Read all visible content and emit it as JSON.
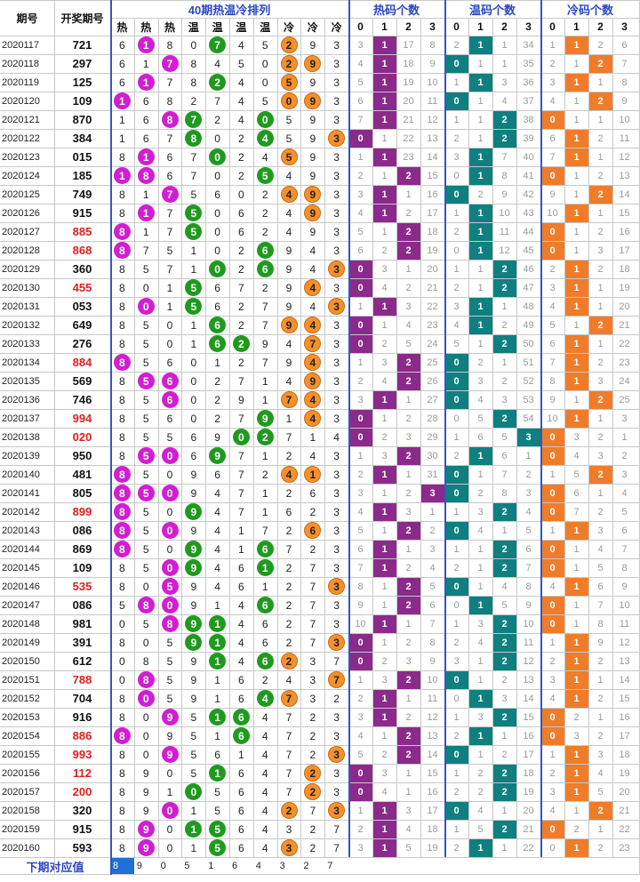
{
  "headers": {
    "period": "期号",
    "number": "开奖期号",
    "ranking": "40期热温冷排列",
    "hot_count": "热码个数",
    "warm_count": "温码个数",
    "cold_count": "冷码个数"
  },
  "ranking_labels": [
    "热",
    "热",
    "热",
    "温",
    "温",
    "温",
    "温",
    "冷",
    "冷",
    "冷"
  ],
  "count_labels": [
    "0",
    "1",
    "2",
    "3"
  ],
  "footer": {
    "label": "下期对应值",
    "values": [
      "8",
      "9",
      "0",
      "5",
      "1",
      "6",
      "4",
      "3",
      "2",
      "7"
    ]
  },
  "colors": {
    "hot_ball": "#d21ed2",
    "warm_ball": "#1f9a1f",
    "cold_ball": "#f5902a",
    "hot_mark": "#8b2a8b",
    "warm_mark": "#0f7f7f",
    "cold_mark": "#f07c2a",
    "highlight_number": "#e02020",
    "header_text": "#2a47c4"
  },
  "chart_data": {
    "type": "table",
    "columns": [
      "期号",
      "开奖期号",
      "40期热温冷排列",
      "热码个数",
      "温码个数",
      "冷码个数"
    ],
    "rows": [
      {
        "p": "2020117",
        "n": "721",
        "r": false,
        "order": "6180745293",
        "hot": [
          3,
          1,
          17,
          8
        ],
        "warm": [
          2,
          1,
          1,
          34
        ],
        "cold": [
          1,
          1,
          2,
          6
        ]
      },
      {
        "p": "2020118",
        "n": "297",
        "r": false,
        "order": "6178450293",
        "hot": [
          4,
          1,
          18,
          9
        ],
        "warm": [
          0,
          1,
          1,
          35
        ],
        "cold": [
          2,
          1,
          2,
          7
        ]
      },
      {
        "p": "2020119",
        "n": "125",
        "r": false,
        "order": "6178240593",
        "hot": [
          5,
          1,
          19,
          10
        ],
        "warm": [
          1,
          1,
          3,
          36
        ],
        "cold": [
          3,
          1,
          1,
          8
        ]
      },
      {
        "p": "2020120",
        "n": "109",
        "r": false,
        "order": "1682745093",
        "hot": [
          6,
          1,
          20,
          11
        ],
        "warm": [
          0,
          1,
          4,
          37
        ],
        "cold": [
          4,
          1,
          2,
          9
        ]
      },
      {
        "p": "2020121",
        "n": "870",
        "r": false,
        "order": "1687240593",
        "hot": [
          7,
          1,
          21,
          12
        ],
        "warm": [
          1,
          1,
          5,
          38
        ],
        "cold": [
          5,
          1,
          1,
          10
        ]
      },
      {
        "p": "2020122",
        "n": "384",
        "r": false,
        "order": "1678024593",
        "hot": [
          0,
          1,
          22,
          13
        ],
        "warm": [
          2,
          1,
          6,
          39
        ],
        "cold": [
          6,
          1,
          2,
          11
        ]
      },
      {
        "p": "2020123",
        "n": "015",
        "r": false,
        "order": "8167024593",
        "hot": [
          1,
          1,
          23,
          14
        ],
        "warm": [
          3,
          1,
          7,
          40
        ],
        "cold": [
          7,
          1,
          1,
          12
        ]
      },
      {
        "p": "2020124",
        "n": "185",
        "r": false,
        "order": "1867025493",
        "hot": [
          2,
          1,
          2,
          15
        ],
        "warm": [
          0,
          1,
          8,
          41
        ],
        "cold": [
          8,
          1,
          2,
          13
        ]
      },
      {
        "p": "2020125",
        "n": "749",
        "r": false,
        "order": "8175602493",
        "hot": [
          3,
          1,
          1,
          16
        ],
        "warm": [
          0,
          2,
          9,
          42
        ],
        "cold": [
          9,
          1,
          2,
          14
        ]
      },
      {
        "p": "2020126",
        "n": "915",
        "r": false,
        "order": "8175062493",
        "hot": [
          4,
          1,
          2,
          17
        ],
        "warm": [
          1,
          1,
          10,
          43
        ],
        "cold": [
          10,
          1,
          1,
          15
        ]
      },
      {
        "p": "2020127",
        "n": "885",
        "r": true,
        "order": "8175062493",
        "hot": [
          5,
          1,
          2,
          18
        ],
        "warm": [
          2,
          1,
          11,
          44
        ],
        "cold": [
          0,
          1,
          2,
          16
        ]
      },
      {
        "p": "2020128",
        "n": "868",
        "r": true,
        "order": "8751026943",
        "hot": [
          6,
          2,
          2,
          19
        ],
        "warm": [
          0,
          1,
          12,
          45
        ],
        "cold": [
          1,
          1,
          3,
          17
        ]
      },
      {
        "p": "2020129",
        "n": "360",
        "r": false,
        "order": "8571026943",
        "hot": [
          0,
          3,
          1,
          20
        ],
        "warm": [
          1,
          1,
          13,
          46
        ],
        "cold": [
          2,
          1,
          2,
          18
        ]
      },
      {
        "p": "2020130",
        "n": "455",
        "r": true,
        "order": "8015672943",
        "hot": [
          0,
          4,
          2,
          21
        ],
        "warm": [
          2,
          1,
          2,
          47
        ],
        "cold": [
          3,
          1,
          1,
          19
        ]
      },
      {
        "p": "2020131",
        "n": "053",
        "r": false,
        "order": "8015627943",
        "hot": [
          1,
          1,
          3,
          22
        ],
        "warm": [
          3,
          1,
          1,
          48
        ],
        "cold": [
          4,
          1,
          1,
          20
        ]
      },
      {
        "p": "2020132",
        "n": "649",
        "r": false,
        "order": "8501627943",
        "hot": [
          0,
          1,
          4,
          23
        ],
        "warm": [
          4,
          1,
          2,
          49
        ],
        "cold": [
          5,
          1,
          2,
          21
        ]
      },
      {
        "p": "2020133",
        "n": "276",
        "r": false,
        "order": "8501629473",
        "hot": [
          0,
          2,
          5,
          24
        ],
        "warm": [
          5,
          1,
          2,
          50
        ],
        "cold": [
          6,
          1,
          1,
          22
        ]
      },
      {
        "p": "2020134",
        "n": "884",
        "r": true,
        "order": "8560127943",
        "hot": [
          1,
          3,
          2,
          25
        ],
        "warm": [
          0,
          2,
          1,
          51
        ],
        "cold": [
          7,
          1,
          2,
          23
        ]
      },
      {
        "p": "2020135",
        "n": "569",
        "r": false,
        "order": "8560271493",
        "hot": [
          2,
          4,
          2,
          26
        ],
        "warm": [
          0,
          3,
          2,
          52
        ],
        "cold": [
          8,
          1,
          3,
          24
        ]
      },
      {
        "p": "2020136",
        "n": "746",
        "r": false,
        "order": "8560291743",
        "hot": [
          3,
          1,
          1,
          27
        ],
        "warm": [
          0,
          4,
          3,
          53
        ],
        "cold": [
          9,
          1,
          2,
          25
        ]
      },
      {
        "p": "2020137",
        "n": "994",
        "r": true,
        "order": "8560279143",
        "hot": [
          0,
          1,
          2,
          28
        ],
        "warm": [
          0,
          5,
          4,
          54
        ],
        "cold": [
          10,
          2,
          1,
          3
        ]
      },
      {
        "p": "2020138",
        "n": "020",
        "r": true,
        "order": "8556902714",
        "hot": [
          0,
          2,
          3,
          29
        ],
        "warm": [
          1,
          6,
          5,
          3
        ],
        "cold": [
          0,
          3,
          2,
          1
        ]
      },
      {
        "p": "2020139",
        "n": "950",
        "r": false,
        "order": "8506971243",
        "hot": [
          1,
          3,
          2,
          30
        ],
        "warm": [
          2,
          1,
          6,
          1
        ],
        "cold": [
          0,
          4,
          3,
          2
        ]
      },
      {
        "p": "2020140",
        "n": "481",
        "r": false,
        "order": "8509672413",
        "hot": [
          2,
          1,
          1,
          31
        ],
        "warm": [
          0,
          1,
          7,
          2
        ],
        "cold": [
          1,
          5,
          2,
          3
        ]
      },
      {
        "p": "2020141",
        "n": "805",
        "r": false,
        "order": "8509471263",
        "hot": [
          3,
          1,
          2,
          3
        ],
        "warm": [
          0,
          2,
          8,
          3
        ],
        "cold": [
          0,
          6,
          1,
          4
        ]
      },
      {
        "p": "2020142",
        "n": "899",
        "r": true,
        "order": "8509471623",
        "hot": [
          4,
          1,
          3,
          1
        ],
        "warm": [
          1,
          3,
          2,
          4
        ],
        "cold": [
          0,
          7,
          2,
          5
        ]
      },
      {
        "p": "2020143",
        "n": "086",
        "r": false,
        "order": "8509417263",
        "hot": [
          5,
          1,
          2,
          2
        ],
        "warm": [
          0,
          4,
          1,
          5
        ],
        "cold": [
          1,
          1,
          3,
          6
        ]
      },
      {
        "p": "2020144",
        "n": "869",
        "r": false,
        "order": "8509416723",
        "hot": [
          6,
          1,
          1,
          3
        ],
        "warm": [
          1,
          1,
          2,
          6
        ],
        "cold": [
          2,
          1,
          4,
          7
        ]
      },
      {
        "p": "2020145",
        "n": "109",
        "r": false,
        "order": "8509461273",
        "hot": [
          7,
          1,
          2,
          4
        ],
        "warm": [
          2,
          1,
          3,
          7
        ],
        "cold": [
          3,
          1,
          5,
          8
        ]
      },
      {
        "p": "2020146",
        "n": "535",
        "r": true,
        "order": "8059461273",
        "hot": [
          8,
          1,
          2,
          5
        ],
        "warm": [
          0,
          1,
          4,
          8
        ],
        "cold": [
          4,
          1,
          6,
          9
        ]
      },
      {
        "p": "2020147",
        "n": "086",
        "r": false,
        "order": "5809146273",
        "hot": [
          9,
          1,
          2,
          6
        ],
        "warm": [
          0,
          2,
          5,
          9
        ],
        "cold": [
          5,
          1,
          7,
          10
        ]
      },
      {
        "p": "2020148",
        "n": "981",
        "r": false,
        "order": "0589146273",
        "hot": [
          10,
          1,
          1,
          7
        ],
        "warm": [
          1,
          3,
          2,
          10
        ],
        "cold": [
          0,
          1,
          8,
          11
        ]
      },
      {
        "p": "2020149",
        "n": "391",
        "r": false,
        "order": "8059146273",
        "hot": [
          1,
          1,
          2,
          8
        ],
        "warm": [
          2,
          4,
          2,
          11
        ],
        "cold": [
          1,
          1,
          9,
          12
        ]
      },
      {
        "p": "2020150",
        "n": "612",
        "r": false,
        "order": "0859146237",
        "hot": [
          0,
          2,
          3,
          9
        ],
        "warm": [
          3,
          1,
          1,
          12
        ],
        "cold": [
          2,
          1,
          2,
          13
        ]
      },
      {
        "p": "2020151",
        "n": "788",
        "r": true,
        "order": "0859162437",
        "hot": [
          1,
          3,
          2,
          10
        ],
        "warm": [
          0,
          1,
          2,
          13
        ],
        "cold": [
          3,
          1,
          1,
          14
        ]
      },
      {
        "p": "2020152",
        "n": "704",
        "r": false,
        "order": "8059164732",
        "hot": [
          2,
          1,
          1,
          11
        ],
        "warm": [
          0,
          2,
          3,
          14
        ],
        "cold": [
          4,
          1,
          2,
          15
        ]
      },
      {
        "p": "2020153",
        "n": "916",
        "r": false,
        "order": "8095164723",
        "hot": [
          3,
          1,
          2,
          12
        ],
        "warm": [
          1,
          3,
          2,
          15
        ],
        "cold": [
          0,
          2,
          1,
          16
        ]
      },
      {
        "p": "2020154",
        "n": "886",
        "r": true,
        "order": "8095164723",
        "hot": [
          4,
          1,
          2,
          13
        ],
        "warm": [
          2,
          1,
          1,
          16
        ],
        "cold": [
          0,
          3,
          2,
          17
        ]
      },
      {
        "p": "2020155",
        "n": "993",
        "r": true,
        "order": "8095614723",
        "hot": [
          5,
          2,
          2,
          14
        ],
        "warm": [
          0,
          1,
          2,
          17
        ],
        "cold": [
          1,
          1,
          3,
          18
        ]
      },
      {
        "p": "2020156",
        "n": "112",
        "r": true,
        "order": "8905164723",
        "hot": [
          0,
          3,
          1,
          15
        ],
        "warm": [
          1,
          2,
          2,
          18
        ],
        "cold": [
          2,
          1,
          4,
          19
        ]
      },
      {
        "p": "2020157",
        "n": "200",
        "r": true,
        "order": "8910564723",
        "hot": [
          0,
          4,
          1,
          16
        ],
        "warm": [
          2,
          2,
          2,
          19
        ],
        "cold": [
          3,
          1,
          5,
          20
        ]
      },
      {
        "p": "2020158",
        "n": "320",
        "r": false,
        "order": "8901564273",
        "hot": [
          1,
          1,
          3,
          17
        ],
        "warm": [
          0,
          4,
          1,
          20
        ],
        "cold": [
          4,
          1,
          2,
          21
        ]
      },
      {
        "p": "2020159",
        "n": "915",
        "r": false,
        "order": "8901564327",
        "hot": [
          2,
          1,
          4,
          18
        ],
        "warm": [
          1,
          5,
          2,
          21
        ],
        "cold": [
          0,
          2,
          1,
          22
        ]
      },
      {
        "p": "2020160",
        "n": "593",
        "r": false,
        "order": "8901564327",
        "hot": [
          3,
          1,
          5,
          19
        ],
        "warm": [
          2,
          1,
          1,
          22
        ],
        "cold": [
          0,
          1,
          2,
          23
        ]
      }
    ]
  }
}
